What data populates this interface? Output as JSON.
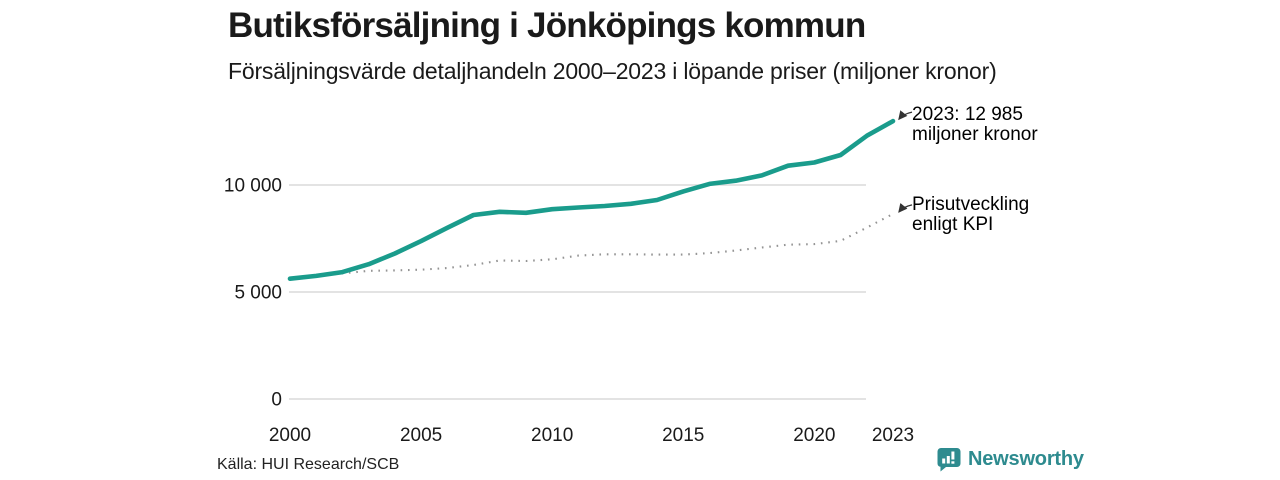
{
  "header": {
    "title": "Butiksförsäljning i Jönköpings kommun",
    "subtitle": "Försäljningsvärde detaljhandeln 2000–2023 i löpande priser (miljoner kronor)"
  },
  "chart_data": {
    "type": "line",
    "x": [
      2000,
      2001,
      2002,
      2003,
      2004,
      2005,
      2006,
      2007,
      2008,
      2009,
      2010,
      2011,
      2012,
      2013,
      2014,
      2015,
      2016,
      2017,
      2018,
      2019,
      2020,
      2021,
      2022,
      2023
    ],
    "series": [
      {
        "name": "Försäljningsvärde detaljhandeln",
        "style": "solid",
        "color": "#1a9c8c",
        "values": [
          5620,
          5750,
          5930,
          6300,
          6800,
          7380,
          8000,
          8600,
          8750,
          8700,
          8870,
          8950,
          9020,
          9120,
          9300,
          9700,
          10050,
          10200,
          10450,
          10900,
          11050,
          11400,
          12300,
          12985
        ]
      },
      {
        "name": "Prisutveckling enligt KPI",
        "style": "dotted",
        "color": "#949494",
        "values": [
          5620,
          5750,
          5870,
          5990,
          6010,
          6040,
          6120,
          6260,
          6470,
          6450,
          6530,
          6700,
          6760,
          6760,
          6750,
          6750,
          6820,
          6940,
          7080,
          7210,
          7240,
          7390,
          8010,
          8650
        ]
      }
    ],
    "yticks": [
      {
        "value": 0,
        "label": "0"
      },
      {
        "value": 5000,
        "label": "5 000"
      },
      {
        "value": 10000,
        "label": "10 000"
      }
    ],
    "xticks": [
      {
        "value": 2000,
        "label": "2000"
      },
      {
        "value": 2005,
        "label": "2005"
      },
      {
        "value": 2010,
        "label": "2010"
      },
      {
        "value": 2015,
        "label": "2015"
      },
      {
        "value": 2020,
        "label": "2020"
      },
      {
        "value": 2023,
        "label": "2023"
      }
    ],
    "ylim": [
      0,
      13500
    ],
    "grid": true,
    "legend_position": "none",
    "annotations": [
      {
        "lines": [
          "2023: 12 985",
          "miljoner kronor"
        ],
        "series": 0,
        "x": 2023
      },
      {
        "lines": [
          "Prisutveckling",
          "enligt KPI"
        ],
        "series": 1,
        "x": 2023
      }
    ]
  },
  "footer": {
    "source": "Källa: HUI Research/SCB",
    "brand": "Newsworthy"
  },
  "colors": {
    "sales_line": "#1a9c8c",
    "kpi_line": "#949494",
    "gridline": "#dadada",
    "brand_teal": "#2e8b8f",
    "arrow": "#333333"
  }
}
